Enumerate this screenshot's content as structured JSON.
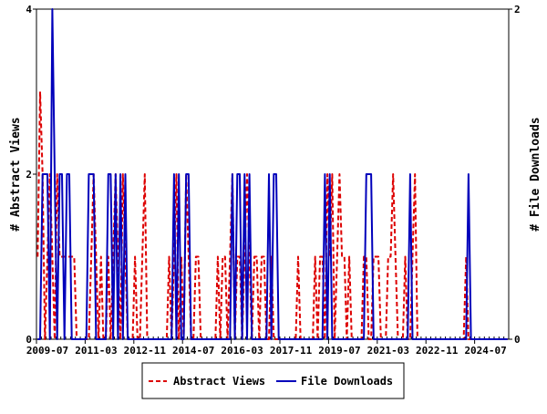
{
  "chart_data": {
    "type": "line",
    "start_month": "2009-07",
    "interval": "month",
    "x_tick_labels": [
      "2009-07",
      "2011-03",
      "2012-11",
      "2014-07",
      "2016-03",
      "2017-11",
      "2019-07",
      "2021-03",
      "2022-11",
      "2024-07"
    ],
    "ylabel_left": "# Abstract Views",
    "ylabel_right": "# File Downloads",
    "ylim_left": [
      0,
      4
    ],
    "ylim_right": [
      0,
      2
    ],
    "y_ticks_left": [
      "0",
      "2",
      "4"
    ],
    "y_ticks_right": [
      "0",
      "2"
    ],
    "legend_position": "bottom",
    "series": [
      {
        "name": "Abstract Views",
        "axis": "left",
        "color": "#dd0000",
        "style": "dashed",
        "values": [
          1,
          3,
          2,
          0,
          1,
          2,
          1,
          0,
          2,
          1,
          1,
          1,
          1,
          1,
          1,
          1,
          0,
          0,
          0,
          0,
          0,
          0,
          1,
          2,
          1,
          0,
          1,
          0,
          0,
          1,
          0,
          1,
          2,
          1,
          0,
          2,
          1,
          0,
          0,
          0,
          1,
          0,
          0,
          1,
          2,
          0,
          0,
          0,
          0,
          0,
          0,
          0,
          0,
          0,
          1,
          0,
          1,
          2,
          0,
          1,
          0,
          2,
          1,
          0,
          0,
          1,
          1,
          0,
          0,
          0,
          0,
          0,
          0,
          0,
          1,
          0,
          1,
          1,
          0,
          1,
          2,
          0,
          1,
          1,
          0,
          1,
          2,
          1,
          0,
          1,
          1,
          0,
          1,
          1,
          0,
          0,
          1,
          0,
          0,
          0,
          0,
          0,
          0,
          0,
          0,
          0,
          0,
          1,
          0,
          0,
          0,
          0,
          0,
          0,
          1,
          0,
          1,
          1,
          0,
          2,
          1,
          2,
          0,
          1,
          2,
          1,
          1,
          0,
          1,
          0,
          0,
          0,
          0,
          0,
          1,
          1,
          0,
          0,
          1,
          1,
          1,
          0,
          0,
          0,
          1,
          1,
          2,
          1,
          0,
          0,
          0,
          1,
          0,
          0,
          1,
          2,
          0,
          0,
          0,
          0,
          0,
          0,
          0,
          0,
          0,
          0,
          0,
          0,
          0,
          0,
          0,
          0,
          0,
          0,
          0,
          0,
          1,
          0,
          0,
          0,
          0,
          0,
          0,
          0,
          0,
          0,
          0,
          0,
          0,
          0,
          0,
          0,
          0,
          0
        ]
      },
      {
        "name": "File Downloads",
        "axis": "right",
        "color": "#0000bb",
        "style": "solid",
        "values": [
          0,
          0,
          1,
          1,
          1,
          0,
          2,
          1,
          0,
          1,
          1,
          0,
          1,
          1,
          0,
          0,
          0,
          0,
          0,
          0,
          0,
          1,
          1,
          1,
          0,
          0,
          0,
          0,
          0,
          1,
          1,
          0,
          1,
          0,
          1,
          0,
          1,
          0,
          0,
          0,
          0,
          0,
          0,
          0,
          0,
          0,
          0,
          0,
          0,
          0,
          0,
          0,
          0,
          0,
          0,
          0,
          1,
          0,
          1,
          0,
          0,
          1,
          1,
          0,
          0,
          0,
          0,
          0,
          0,
          0,
          0,
          0,
          0,
          0,
          0,
          0,
          0,
          0,
          0,
          0,
          1,
          0,
          1,
          1,
          0,
          1,
          0,
          1,
          0,
          0,
          0,
          0,
          0,
          0,
          0,
          1,
          0,
          1,
          1,
          0,
          0,
          0,
          0,
          0,
          0,
          0,
          0,
          0,
          0,
          0,
          0,
          0,
          0,
          0,
          0,
          0,
          0,
          0,
          1,
          0,
          1,
          0,
          0,
          0,
          0,
          0,
          0,
          0,
          0,
          0,
          0,
          0,
          0,
          0,
          0,
          1,
          1,
          1,
          0,
          0,
          0,
          0,
          0,
          0,
          0,
          0,
          0,
          0,
          0,
          0,
          0,
          0,
          0,
          1,
          0,
          0,
          0,
          0,
          0,
          0,
          0,
          0,
          0,
          0,
          0,
          0,
          0,
          0,
          0,
          0,
          0,
          0,
          0,
          0,
          0,
          0,
          0,
          1,
          0,
          0,
          0,
          0,
          0,
          0,
          0,
          0,
          0,
          0,
          0,
          0,
          0,
          0,
          0,
          0
        ]
      }
    ]
  }
}
